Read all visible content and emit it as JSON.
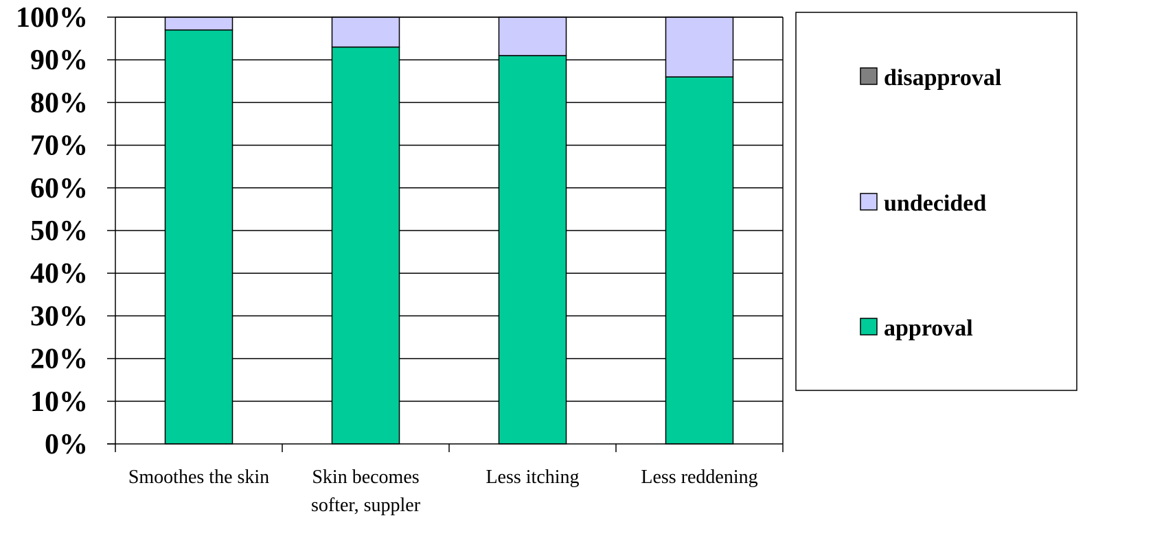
{
  "colors": {
    "approval": "#00cc99",
    "undecided": "#ccccff",
    "disapproval": "#808080",
    "gridline": "#000000",
    "bar_border": "#000000"
  },
  "chart_data": {
    "type": "bar",
    "stacked": true,
    "categories": [
      [
        "Smoothes the skin"
      ],
      [
        "Skin becomes",
        "softer, suppler"
      ],
      [
        "Less itching"
      ],
      [
        "Less reddening"
      ]
    ],
    "series": [
      {
        "name": "approval",
        "values": [
          97,
          93,
          91,
          86
        ]
      },
      {
        "name": "undecided",
        "values": [
          3,
          7,
          9,
          14
        ]
      },
      {
        "name": "disapproval",
        "values": [
          0,
          0,
          0,
          0
        ]
      }
    ],
    "ylim": [
      0,
      100
    ],
    "yticks": [
      "0%",
      "10%",
      "20%",
      "30%",
      "40%",
      "50%",
      "60%",
      "70%",
      "80%",
      "90%",
      "100%"
    ],
    "grid": true,
    "legend": {
      "placement": "right",
      "entries": [
        "disapproval",
        "undecided",
        "approval"
      ]
    },
    "title": "",
    "xlabel": "",
    "ylabel": ""
  }
}
